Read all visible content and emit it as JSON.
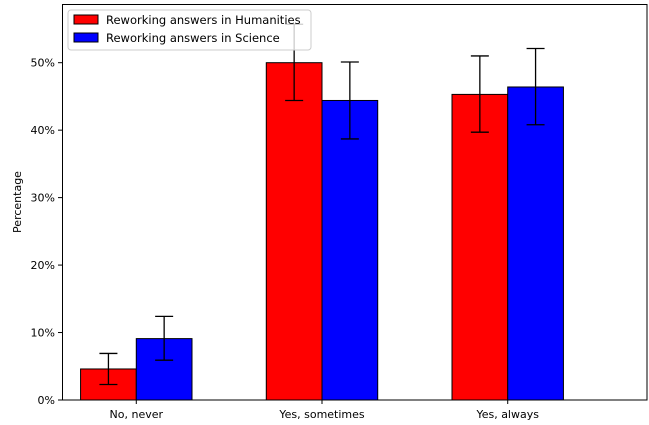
{
  "chart_data": {
    "type": "bar",
    "title": "",
    "xlabel": "",
    "ylabel": "Percentage",
    "ylim": [
      0,
      58.7
    ],
    "yticks": [
      0,
      10,
      20,
      30,
      40,
      50
    ],
    "ytick_format": "{v}%",
    "categories": [
      "No, never",
      "Yes, sometimes",
      "Yes, always"
    ],
    "grid": false,
    "legend_position": "top-left",
    "series": [
      {
        "name": "Reworking answers in Humanities",
        "color": "#ff0000",
        "values": [
          4.6,
          50.0,
          45.3
        ],
        "error_low": [
          2.3,
          44.4,
          39.7
        ],
        "error_high": [
          6.9,
          55.7,
          51.0
        ]
      },
      {
        "name": "Reworking answers in Science",
        "color": "#0000ff",
        "values": [
          9.1,
          44.4,
          46.4
        ],
        "error_low": [
          5.9,
          38.7,
          40.8
        ],
        "error_high": [
          12.4,
          50.1,
          52.1
        ]
      }
    ]
  }
}
